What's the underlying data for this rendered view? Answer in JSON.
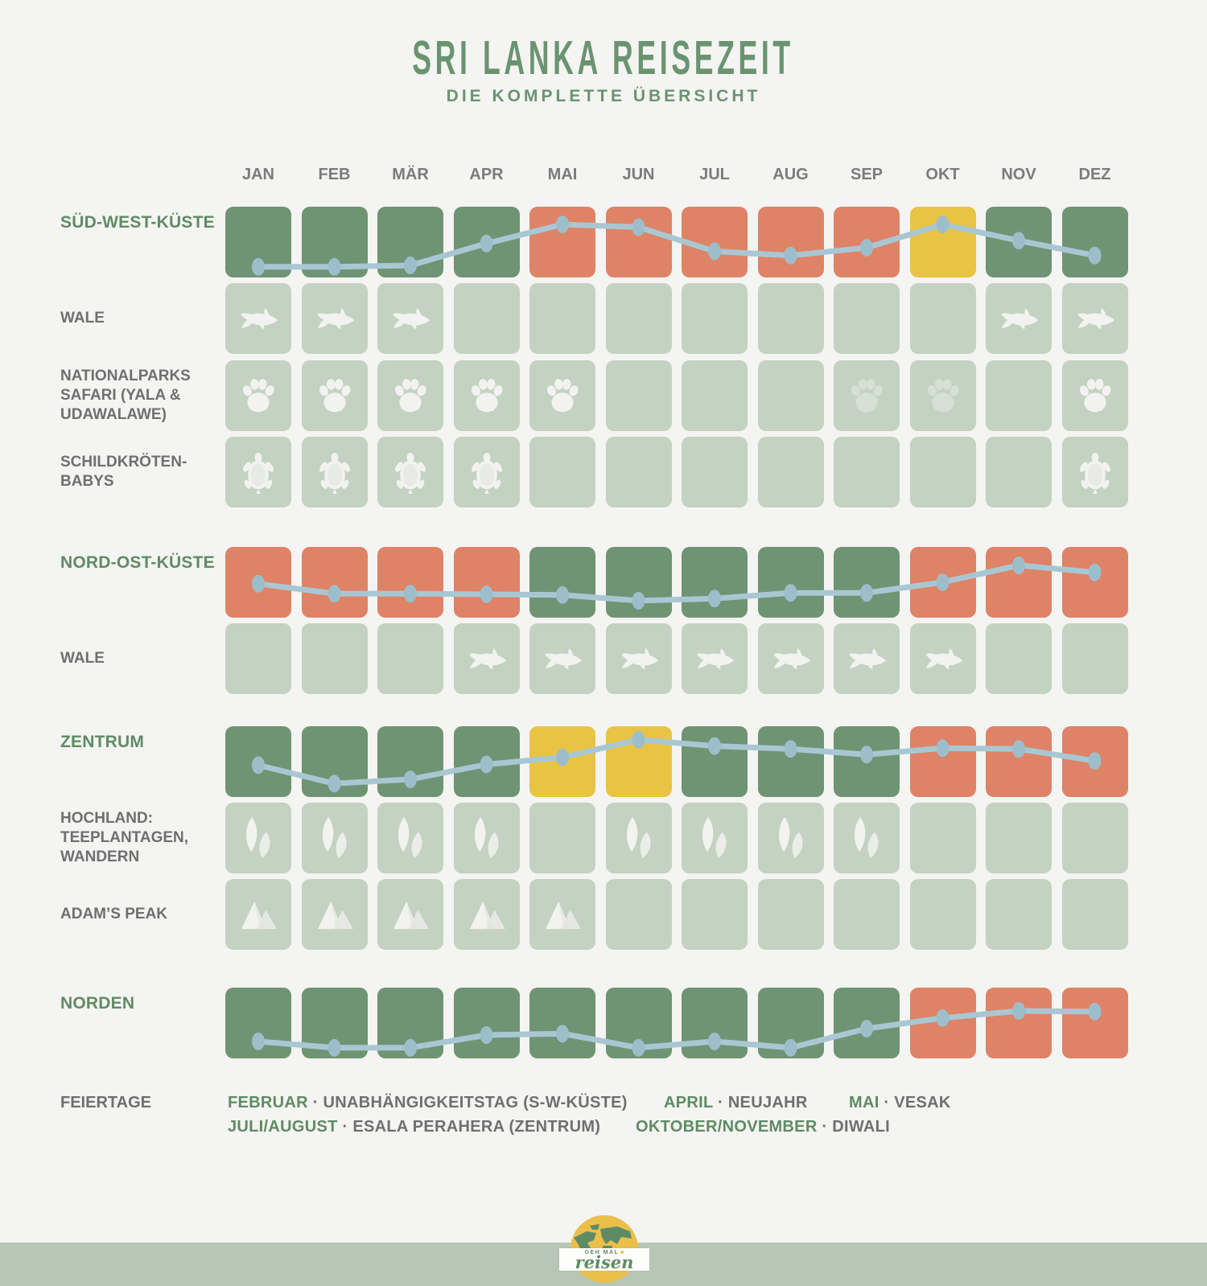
{
  "title": "SRI LANKA REISEZEIT",
  "subtitle": "DIE KOMPLETTE ÜBERSICHT",
  "months": [
    "JAN",
    "FEB",
    "MÄR",
    "APR",
    "MAI",
    "JUN",
    "JUL",
    "AUG",
    "SEP",
    "OKT",
    "NOV",
    "DEZ"
  ],
  "colors": {
    "good": "#6F9473",
    "bad": "#DE8366",
    "medium": "#E9C444",
    "inactive": "#C4D2C1",
    "line": "#A9C7D3",
    "line_dot": "#9CBECB",
    "icon": "#F2F3F1",
    "region_label": "#5F8B64",
    "gray_label": "#6F6F6F",
    "background": "#F4F4F2",
    "footer_band": "#B7C6B5",
    "logo_yellow": "#EABF4A",
    "logo_map_green": "#5F8B64"
  },
  "chart_data": {
    "type": "heatmap",
    "categories": [
      "JAN",
      "FEB",
      "MÄR",
      "APR",
      "MAI",
      "JUN",
      "JUL",
      "AUG",
      "SEP",
      "OKT",
      "NOV",
      "DEZ"
    ],
    "cell_states": [
      "good",
      "medium",
      "bad",
      "inactive"
    ],
    "rows": [
      {
        "key": "sued-west-kueste",
        "kind": "region",
        "label": "SÜD-WEST-KÜSTE",
        "cells": [
          "good",
          "good",
          "good",
          "good",
          "bad",
          "bad",
          "bad",
          "bad",
          "bad",
          "medium",
          "good",
          "good"
        ],
        "trend": [
          0.85,
          0.85,
          0.83,
          0.52,
          0.25,
          0.29,
          0.63,
          0.69,
          0.58,
          0.25,
          0.48,
          0.69
        ]
      },
      {
        "key": "wale-sued-west",
        "kind": "activity",
        "label": "WALE",
        "icon": "whale-icon",
        "active_months": [
          1,
          2,
          3,
          11,
          12
        ],
        "faint_months": []
      },
      {
        "key": "nationalparks-safari",
        "kind": "activity",
        "label": "NATIONALPARKS\nSAFARI (YALA &\nUDAWALAWE)",
        "icon": "paw-icon",
        "active_months": [
          1,
          2,
          3,
          4,
          5,
          12
        ],
        "faint_months": [
          9,
          10
        ]
      },
      {
        "key": "schildkroeten-babys",
        "kind": "activity",
        "label": "SCHILDKRÖTEN-\nBABYS",
        "icon": "turtle-icon",
        "active_months": [
          1,
          2,
          3,
          4,
          12
        ],
        "faint_months": []
      },
      {
        "key": "nord-ost-kueste",
        "kind": "region",
        "label": "NORD-OST-KÜSTE",
        "cells": [
          "bad",
          "bad",
          "bad",
          "bad",
          "good",
          "good",
          "good",
          "good",
          "good",
          "bad",
          "bad",
          "bad"
        ],
        "trend": [
          0.52,
          0.66,
          0.66,
          0.67,
          0.68,
          0.76,
          0.73,
          0.65,
          0.65,
          0.5,
          0.26,
          0.36
        ]
      },
      {
        "key": "wale-nord-ost",
        "kind": "activity",
        "label": "WALE",
        "icon": "whale-icon",
        "active_months": [
          4,
          5,
          6,
          7,
          8,
          9,
          10
        ],
        "faint_months": []
      },
      {
        "key": "zentrum",
        "kind": "region",
        "label": "ZENTRUM",
        "cells": [
          "good",
          "good",
          "good",
          "good",
          "medium",
          "medium",
          "good",
          "good",
          "good",
          "bad",
          "bad",
          "bad"
        ],
        "trend": [
          0.55,
          0.81,
          0.75,
          0.54,
          0.44,
          0.19,
          0.28,
          0.32,
          0.4,
          0.31,
          0.32,
          0.49
        ]
      },
      {
        "key": "hochland",
        "kind": "activity",
        "label": "HOCHLAND:\nTEEPLANTAGEN,\nWANDERN",
        "icon": "tea-leaf-icon",
        "active_months": [
          1,
          2,
          3,
          4,
          6,
          7,
          8,
          9
        ],
        "faint_months": []
      },
      {
        "key": "adams-peak",
        "kind": "activity",
        "label": "ADAM’S PEAK",
        "icon": "mountain-icon",
        "active_months": [
          1,
          2,
          3,
          4,
          5
        ],
        "faint_months": []
      },
      {
        "key": "norden",
        "kind": "region",
        "label": "NORDEN",
        "cells": [
          "good",
          "good",
          "good",
          "good",
          "good",
          "good",
          "good",
          "good",
          "good",
          "bad",
          "bad",
          "bad"
        ],
        "trend": [
          0.76,
          0.85,
          0.85,
          0.67,
          0.65,
          0.85,
          0.76,
          0.85,
          0.58,
          0.43,
          0.33,
          0.34
        ]
      }
    ]
  },
  "holidays": {
    "label": "FEIERTAGE",
    "items": [
      {
        "period": "FEBRUAR",
        "name": "· UNABHÄNGIGKEITSTAG (S-W-KÜSTE)",
        "line": 1
      },
      {
        "period": "APRIL",
        "name": "· NEUJAHR",
        "line": 1
      },
      {
        "period": "MAI",
        "name": "· VESAK",
        "line": 1
      },
      {
        "period": "JULI/AUGUST",
        "name": "· ESALA PERAHERA (ZENTRUM)",
        "line": 2
      },
      {
        "period": "OKTOBER/NOVEMBER",
        "name": "· DIWALI",
        "line": 2
      }
    ]
  },
  "logo": {
    "top_text": "GEH MAL",
    "bottom_text": "reisen"
  }
}
